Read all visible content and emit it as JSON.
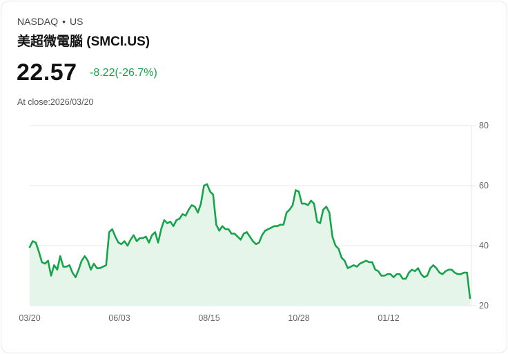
{
  "header": {
    "exchange": "NASDAQ",
    "separator": "•",
    "market": "US",
    "name": "美超微電腦 (SMCI.US)",
    "price": "22.57",
    "change": "-8.22(-26.7%)",
    "close_label": "At close:2026/03/20"
  },
  "colors": {
    "line": "#16a34a",
    "fill": "#e6f5ea",
    "change": "#16a34a",
    "grid": "#e5e7eb"
  },
  "chart_data": {
    "type": "area",
    "title": "美超微電腦 (SMCI.US)",
    "xlabel": "",
    "ylabel": "",
    "ylim": [
      20,
      80
    ],
    "yticks": [
      80,
      60,
      40,
      20
    ],
    "xticks": [
      "03/20",
      "06/03",
      "08/15",
      "10/28",
      "01/12"
    ],
    "grid": true,
    "legend": "none",
    "series": [
      {
        "name": "SMCI.US",
        "values": [
          39.5,
          41.5,
          41,
          38,
          34.5,
          34,
          35,
          30,
          33.5,
          32,
          36.5,
          33,
          33,
          33.5,
          31,
          29.5,
          32,
          35,
          36.5,
          35,
          32,
          34,
          32.5,
          32.5,
          33,
          33.5,
          44.5,
          45.5,
          43,
          41,
          40.5,
          41.5,
          40,
          42,
          43.5,
          41.5,
          42.5,
          42.5,
          43,
          41,
          43.5,
          44.5,
          41,
          45.5,
          48.5,
          47.5,
          48,
          46.5,
          48.5,
          49,
          50.5,
          50,
          52,
          53.5,
          53,
          51,
          54,
          60,
          60.5,
          58,
          57,
          47,
          45,
          46.5,
          45.5,
          45.5,
          44,
          44,
          43,
          42,
          44,
          44.5,
          43,
          41.5,
          40.5,
          41,
          43.5,
          45,
          45.5,
          46,
          46.5,
          46.5,
          47,
          47,
          51,
          52,
          53.5,
          58.5,
          58,
          54,
          54,
          53.5,
          55,
          54,
          48,
          47.5,
          52,
          53,
          51,
          43,
          40,
          39,
          36,
          35,
          32.5,
          33,
          33.5,
          33,
          34,
          34.5,
          35,
          34.5,
          34.5,
          32,
          31.5,
          30,
          30,
          30.5,
          30.5,
          29.5,
          30.5,
          30.5,
          29,
          29,
          31,
          32,
          31.5,
          32.5,
          30.5,
          29.5,
          30,
          32.5,
          33.5,
          32.5,
          31,
          30.5,
          31.5,
          32,
          32,
          31,
          30.5,
          30.5,
          31,
          31,
          22.5
        ]
      }
    ]
  }
}
